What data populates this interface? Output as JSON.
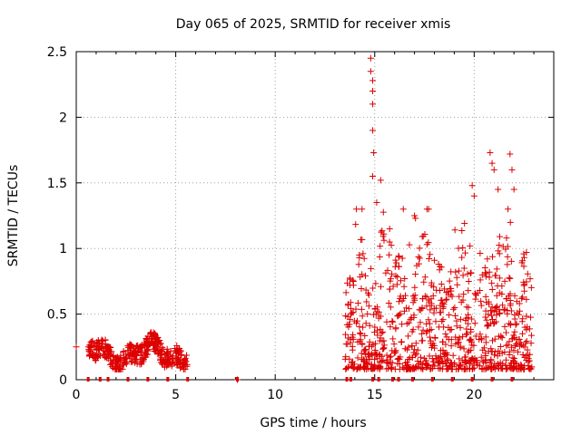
{
  "chart_data": {
    "type": "scatter",
    "title": "Day 065 of 2025, SRMTID for receiver xmis",
    "xlabel": "GPS time / hours",
    "ylabel": "SRMTID / TECUs",
    "xlim": [
      0,
      24
    ],
    "ylim": [
      0,
      2.5
    ],
    "x_ticks": [
      0,
      5,
      10,
      15,
      20
    ],
    "x_tick_labels": [
      "0",
      "5",
      "10",
      "15",
      "20"
    ],
    "y_ticks": [
      0,
      0.5,
      1,
      1.5,
      2,
      2.5
    ],
    "y_tick_labels": [
      "0",
      "0.5",
      "1",
      "1.5",
      "2",
      "2.5"
    ],
    "grid": true,
    "marker": "+",
    "color": "#dd0000",
    "series": [
      {
        "name": "SRMTID",
        "segments": [
          {
            "x_start": 0.6,
            "x_end": 5.6,
            "base": 0.2,
            "amp": 0.15
          },
          {
            "x_start": 13.5,
            "x_end": 22.9,
            "base": 0.25,
            "amp": 1.0
          }
        ],
        "peaks": [
          {
            "x": 14.8,
            "y": 2.45
          },
          {
            "x": 14.8,
            "y": 2.35
          },
          {
            "x": 14.9,
            "y": 2.28
          },
          {
            "x": 14.9,
            "y": 2.2
          },
          {
            "x": 14.9,
            "y": 2.1
          },
          {
            "x": 14.9,
            "y": 1.9
          },
          {
            "x": 14.95,
            "y": 1.73
          },
          {
            "x": 14.9,
            "y": 1.55
          },
          {
            "x": 15.1,
            "y": 1.35
          },
          {
            "x": 15.3,
            "y": 1.52
          },
          {
            "x": 17.0,
            "y": 1.25
          },
          {
            "x": 17.05,
            "y": 1.23
          },
          {
            "x": 19.9,
            "y": 1.48
          },
          {
            "x": 20.0,
            "y": 1.4
          },
          {
            "x": 20.8,
            "y": 1.73
          },
          {
            "x": 20.9,
            "y": 1.65
          },
          {
            "x": 21.0,
            "y": 1.6
          },
          {
            "x": 21.2,
            "y": 1.45
          },
          {
            "x": 21.7,
            "y": 1.3
          },
          {
            "x": 21.8,
            "y": 1.72
          },
          {
            "x": 21.9,
            "y": 1.6
          },
          {
            "x": 22.0,
            "y": 1.45
          }
        ],
        "points": [
          {
            "x": 0.0,
            "y": 0.25
          },
          {
            "x": 8.1,
            "y": 0.0
          }
        ]
      }
    ],
    "baseline_points_x": [
      0.6,
      1.2,
      1.6,
      2.6,
      3.6,
      4.6,
      5.6,
      8.1,
      13.6,
      13.8,
      14.9,
      15.2,
      15.9,
      16.2,
      16.9,
      17.9,
      18.9,
      19.9,
      20.9,
      21.9
    ]
  }
}
